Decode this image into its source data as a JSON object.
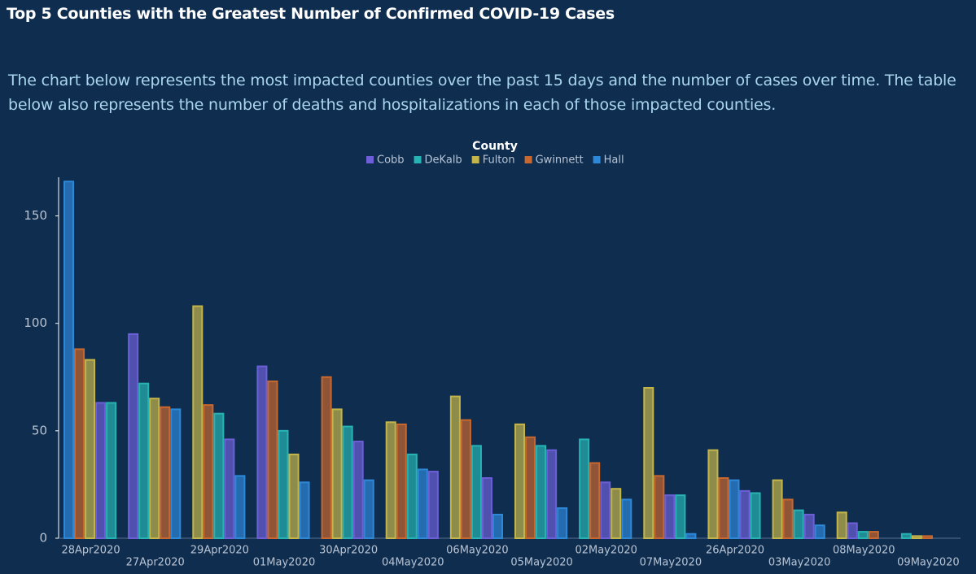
{
  "chart_data": {
    "type": "bar",
    "title": "Top 5 Counties with the Greatest Number of Confirmed COVID-19 Cases",
    "subtitle": "The chart below represents the most impacted counties over the past 15 days and the number of cases over time. The table below also represents the number of deaths and hospitalizations in each of those impacted counties.",
    "legend_title": "County",
    "categories": [
      "28Apr2020",
      "27Apr2020",
      "29Apr2020",
      "01May2020",
      "30Apr2020",
      "04May2020",
      "06May2020",
      "05May2020",
      "02May2020",
      "07May2020",
      "26Apr2020",
      "03May2020",
      "08May2020",
      "09May2020"
    ],
    "series": [
      {
        "name": "Cobb",
        "color": "#6c5fd8",
        "values": [
          63,
          95,
          46,
          80,
          45,
          31,
          28,
          41,
          26,
          20,
          22,
          11,
          7,
          null
        ]
      },
      {
        "name": "DeKalb",
        "color": "#27b3b3",
        "values": [
          63,
          72,
          58,
          50,
          52,
          39,
          43,
          43,
          46,
          20,
          21,
          13,
          3,
          2
        ]
      },
      {
        "name": "Fulton",
        "color": "#c4b54a",
        "values": [
          83,
          65,
          108,
          39,
          60,
          54,
          66,
          53,
          23,
          70,
          41,
          27,
          12,
          1
        ]
      },
      {
        "name": "Gwinnett",
        "color": "#c8672e",
        "values": [
          88,
          61,
          62,
          73,
          75,
          53,
          55,
          47,
          35,
          29,
          28,
          18,
          3,
          1
        ]
      },
      {
        "name": "Hall",
        "color": "#2d88d8",
        "values": [
          166,
          60,
          29,
          26,
          27,
          32,
          11,
          14,
          18,
          2,
          27,
          6,
          null,
          null
        ]
      }
    ],
    "ylim": [
      0,
      168
    ],
    "yticks": [
      0,
      50,
      100,
      150
    ]
  }
}
